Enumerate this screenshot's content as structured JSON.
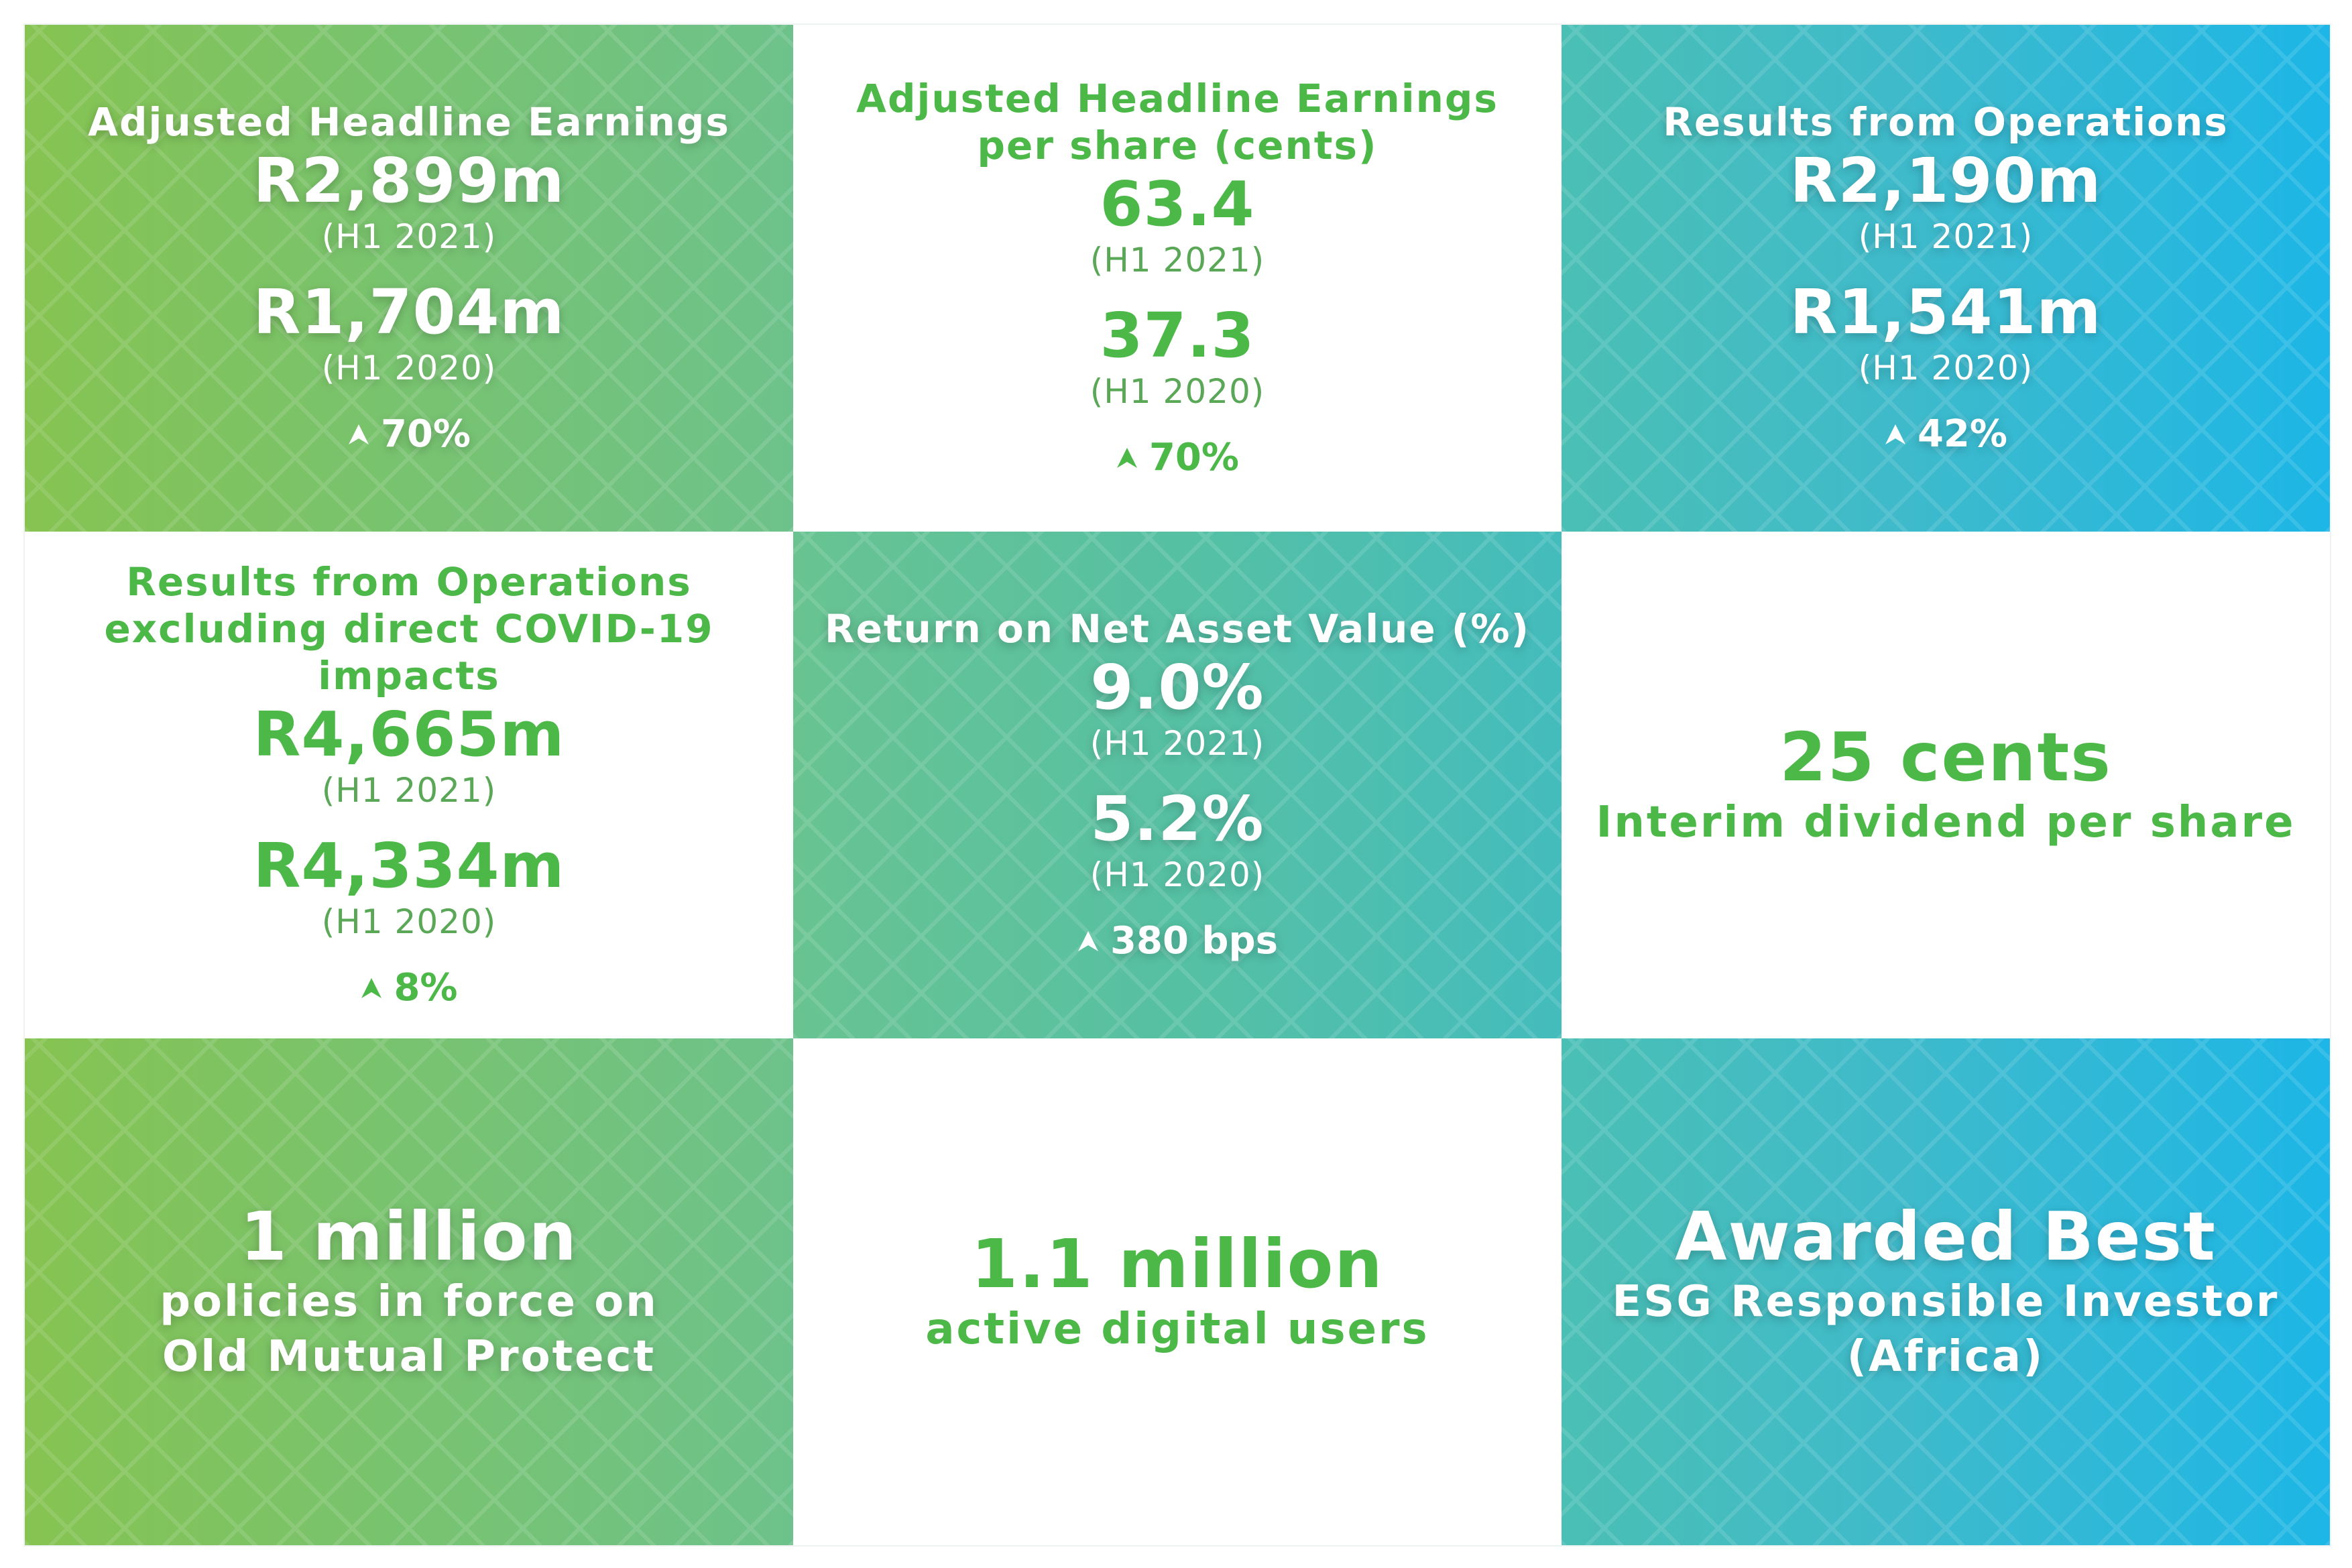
{
  "tiles": [
    {
      "title": "Adjusted Headline Earnings",
      "v1": "R2,899m",
      "p1": "(H1 2021)",
      "v2": "R1,704m",
      "p2": "(H1 2020)",
      "change": "70%"
    },
    {
      "title_line1": "Adjusted Headline Earnings",
      "title_line2": "per share (cents)",
      "v1": "63.4",
      "p1": "(H1 2021)",
      "v2": "37.3",
      "p2": "(H1 2020)",
      "change": "70%"
    },
    {
      "title": "Results from Operations",
      "v1": "R2,190m",
      "p1": "(H1 2021)",
      "v2": "R1,541m",
      "p2": "(H1 2020)",
      "change": "42%"
    },
    {
      "title_line1": "Results from Operations",
      "title_line2": "excluding direct COVID-19 impacts",
      "v1": "R4,665m",
      "p1": "(H1 2021)",
      "v2": "R4,334m",
      "p2": "(H1 2020)",
      "change": "8%"
    },
    {
      "title": "Return on Net Asset Value (%)",
      "v1": "9.0%",
      "p1": "(H1 2021)",
      "v2": "5.2%",
      "p2": "(H1 2020)",
      "change": "380 bps"
    },
    {
      "headline": "25 cents",
      "line1": "Interim dividend per share"
    },
    {
      "headline": "1 million",
      "line1": "policies in force on",
      "line2": "Old Mutual Protect"
    },
    {
      "headline": "1.1 million",
      "line1": "active digital users"
    },
    {
      "headline": "Awarded Best",
      "line1": "ESG Responsible Investor",
      "line2": "(Africa)"
    }
  ],
  "icons": {
    "change": "up-arrow-icon"
  },
  "colors": {
    "green": "#4cb848",
    "white": "#ffffff",
    "gradient_green_start": "#86c351",
    "gradient_teal_end": "#1db6e6"
  }
}
